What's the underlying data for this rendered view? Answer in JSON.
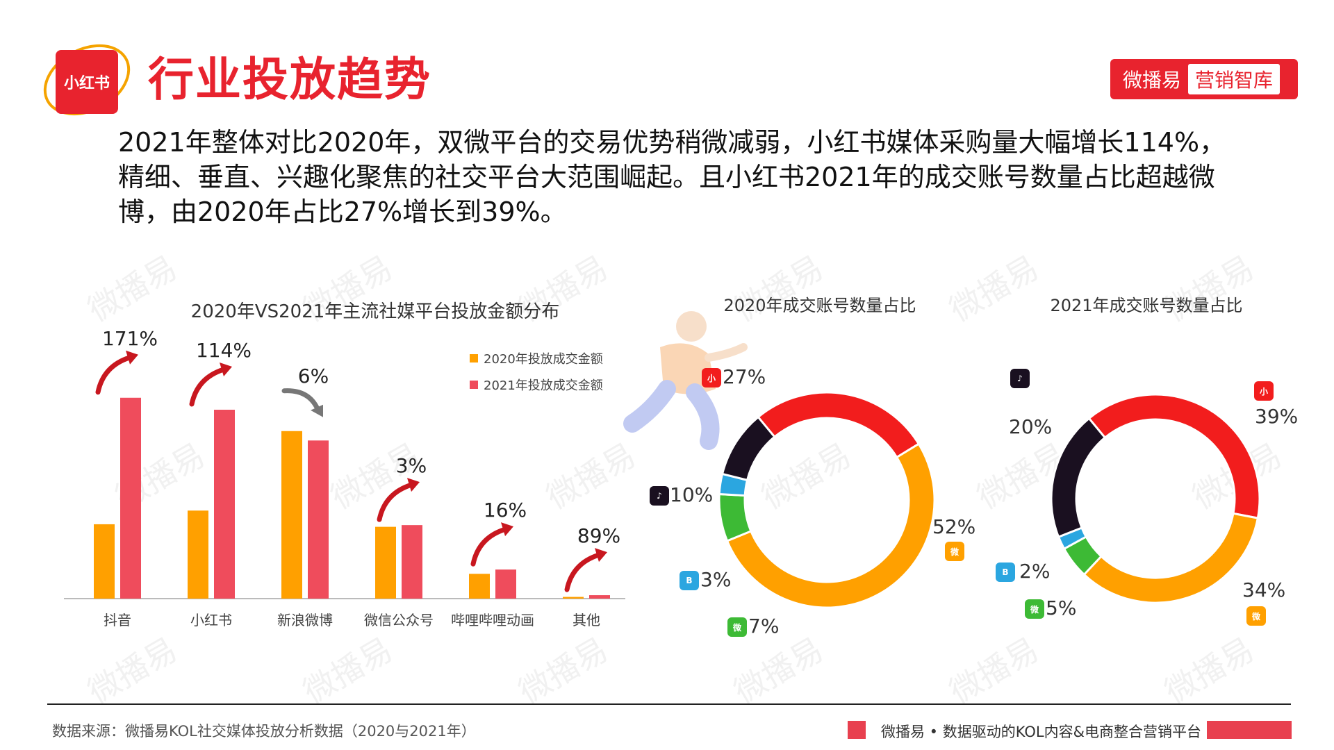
{
  "header": {
    "logo_text": "小红书",
    "title": "行业投放趋势",
    "brand_name": "微播易",
    "brand_tag": "营销智库"
  },
  "summary": "2021年整体对比2020年，双微平台的交易优势稍微减弱，小红书媒体采购量大幅增长114%，精细、垂直、兴趣化聚焦的社交平台大范围崛起。且小红书2021年的成交账号数量占比超越微博，由2020年占比27%增长到39%。",
  "watermark": "微播易",
  "colors": {
    "brand_red": "#e8232e",
    "series_2020": "#ffa000",
    "series_2021": "#ef4c5c",
    "douyin": "#1a1020",
    "bilibili": "#2ba6e0",
    "wechat": "#3dba35",
    "weibo": "#ffa000",
    "xiaohongshu": "#f21d1d"
  },
  "chart_data": [
    {
      "type": "bar",
      "title": "2020年VS2021年主流社媒平台投放金额分布",
      "categories": [
        "抖音",
        "小红书",
        "新浪微博",
        "微信公众号",
        "哔哩哔哩动画",
        "其他"
      ],
      "series": [
        {
          "name": "2020年投放成交金额",
          "values": [
            87,
            103,
            196,
            84,
            29,
            2
          ]
        },
        {
          "name": "2021年投放成交金额",
          "values": [
            235,
            221,
            185,
            86,
            34,
            4
          ]
        }
      ],
      "growth_labels": [
        "171%",
        "114%",
        "6%",
        "3%",
        "16%",
        "89%"
      ],
      "growth_direction": [
        "up",
        "up",
        "down",
        "up",
        "up",
        "up"
      ],
      "ylim": [
        0,
        260
      ],
      "legend_position": "top-right",
      "grid": false
    },
    {
      "type": "pie",
      "title": "2020年成交账号数量占比",
      "slices": [
        {
          "label": "小红书",
          "value": 27,
          "display": "27%",
          "icon": "xiaohongshu-icon"
        },
        {
          "label": "微博",
          "value": 52,
          "display": "52%",
          "icon": "weibo-icon"
        },
        {
          "label": "微信",
          "value": 7,
          "display": "7%",
          "icon": "wechat-icon"
        },
        {
          "label": "哔哩哔哩",
          "value": 3,
          "display": "3%",
          "icon": "bilibili-icon"
        },
        {
          "label": "抖音",
          "value": 10,
          "display": "10%",
          "icon": "douyin-icon"
        }
      ]
    },
    {
      "type": "pie",
      "title": "2021年成交账号数量占比",
      "slices": [
        {
          "label": "小红书",
          "value": 39,
          "display": "39%",
          "icon": "xiaohongshu-icon"
        },
        {
          "label": "微博",
          "value": 34,
          "display": "34%",
          "icon": "weibo-icon"
        },
        {
          "label": "微信",
          "value": 5,
          "display": "5%",
          "icon": "wechat-icon"
        },
        {
          "label": "哔哩哔哩",
          "value": 2,
          "display": "2%",
          "icon": "bilibili-icon"
        },
        {
          "label": "抖音",
          "value": 20,
          "display": "20%",
          "icon": "douyin-icon"
        }
      ]
    }
  ],
  "footer": {
    "source": "数据来源：微播易KOL社交媒体投放分析数据（2020与2021年）",
    "tagline": "微播易 • 数据驱动的KOL内容&电商整合营销平台"
  }
}
